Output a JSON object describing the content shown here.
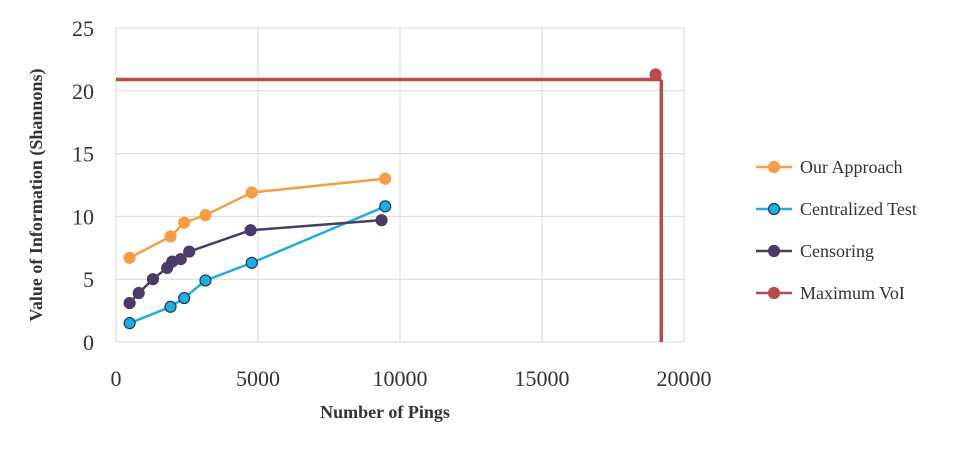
{
  "chart_data": {
    "type": "line",
    "title": "",
    "xlabel": "Number of Pings",
    "ylabel": "Value of Information (Shannons)",
    "xlim": [
      0,
      20000
    ],
    "ylim": [
      0,
      25
    ],
    "x_ticks": [
      0,
      5000,
      10000,
      15000,
      20000
    ],
    "y_ticks": [
      0,
      5,
      10,
      15,
      20,
      25
    ],
    "x_tick_labels": [
      "0",
      "5000",
      "10000",
      "15000",
      "20000"
    ],
    "y_tick_labels": [
      "0",
      "5",
      "10",
      "15",
      "20",
      "25"
    ],
    "grid": true,
    "legend_position": "right",
    "series": [
      {
        "name": "Our Approach",
        "color": "#F79D45",
        "marker_stroke": "#F79D45",
        "points": [
          [
            480,
            6.7
          ],
          [
            1920,
            8.4
          ],
          [
            2400,
            9.5
          ],
          [
            3150,
            10.1
          ],
          [
            4780,
            11.9
          ],
          [
            9480,
            13.0
          ]
        ]
      },
      {
        "name": "Centralized Test",
        "color": "#1FAEE0",
        "marker_stroke": "#1B3A5C",
        "points": [
          [
            480,
            1.5
          ],
          [
            1920,
            2.8
          ],
          [
            2400,
            3.5
          ],
          [
            3150,
            4.9
          ],
          [
            4780,
            6.3
          ],
          [
            9480,
            10.8
          ]
        ]
      },
      {
        "name": "Censoring",
        "color": "#4A3C67",
        "marker_stroke": "#4A3C67",
        "points": [
          [
            480,
            3.1
          ],
          [
            800,
            3.9
          ],
          [
            1300,
            5.0
          ],
          [
            1800,
            5.9
          ],
          [
            1980,
            6.4
          ],
          [
            2280,
            6.6
          ],
          [
            2580,
            7.2
          ],
          [
            4740,
            8.9
          ],
          [
            9350,
            9.7
          ]
        ]
      },
      {
        "name": "Maximum VoI",
        "color": "#B94B4B",
        "marker_stroke": "#B94B4B",
        "points": [
          [
            19000,
            21.3
          ]
        ],
        "lines": [
          {
            "from": [
              0,
              20.9
            ],
            "to": [
              19200,
              20.9
            ]
          },
          {
            "from": [
              19200,
              20.9
            ],
            "to": [
              19200,
              0
            ]
          }
        ]
      }
    ]
  }
}
